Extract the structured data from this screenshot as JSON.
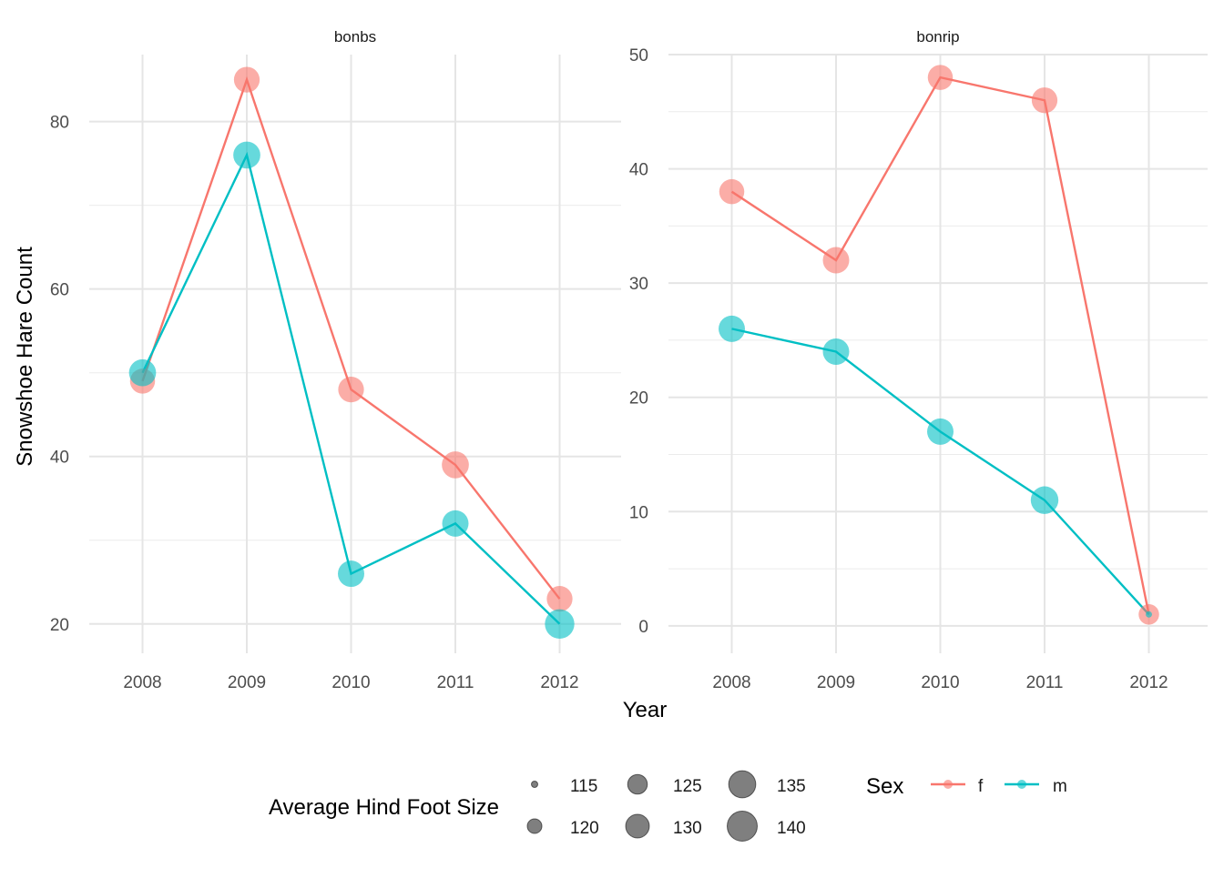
{
  "chart_data": {
    "type": "line",
    "ylabel": "Snowshoe Hare Count",
    "xlabel": "Year",
    "x": [
      "2008",
      "2009",
      "2010",
      "2011",
      "2012"
    ],
    "colors": {
      "f": "#F8766D",
      "m": "#00BFC4"
    },
    "panels": [
      {
        "title": "bonbs",
        "ylim": [
          16.5,
          88
        ],
        "yticks": [
          20,
          40,
          60,
          80
        ],
        "series": [
          {
            "name": "f",
            "values": [
              49,
              85,
              48,
              39,
              23
            ],
            "foot_size": [
              132,
              133,
              133,
              135,
              133
            ]
          },
          {
            "name": "m",
            "values": [
              50,
              76,
              26,
              32,
              20
            ],
            "foot_size": [
              135,
              135,
              134,
              134,
              139
            ]
          }
        ]
      },
      {
        "title": "bonrip",
        "ylim": [
          -2.4,
          50
        ],
        "yticks": [
          0,
          10,
          20,
          30,
          40,
          50
        ],
        "series": [
          {
            "name": "f",
            "values": [
              38,
              32,
              48,
              46,
              1
            ],
            "foot_size": [
              132,
              134,
              132,
              133,
              126
            ]
          },
          {
            "name": "m",
            "values": [
              26,
              24,
              17,
              11,
              1
            ],
            "foot_size": [
              134,
              134,
              134,
              136,
              113
            ]
          }
        ]
      }
    ],
    "legend": {
      "position": "bottom",
      "size_title": "Average Hind Foot Size",
      "size_breaks": [
        "115",
        "120",
        "125",
        "130",
        "135",
        "140"
      ],
      "color_title": "Sex",
      "color_entries": [
        "f",
        "m"
      ]
    },
    "grid": true
  }
}
